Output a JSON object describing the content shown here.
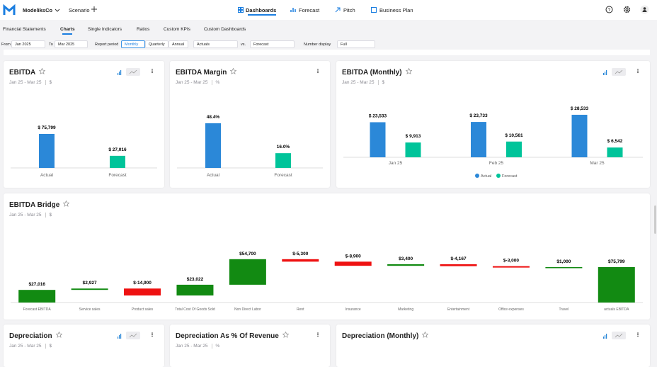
{
  "header": {
    "brand": "ModeliksCo",
    "scenario": "Scenario",
    "nav": [
      "Dashboards",
      "Forecast",
      "Pitch",
      "Business Plan"
    ]
  },
  "tabs": [
    "Financial Statements",
    "Charts",
    "Single Indicators",
    "Ratios",
    "Custom KPIs",
    "Custom Dashboards"
  ],
  "filters": {
    "from_label": "From",
    "from": "Jan 2025",
    "to_label": "To",
    "to": "Mar 2025",
    "period_label": "Report period",
    "periods": [
      "Monthly",
      "Quarterly",
      "Annual"
    ],
    "compare": "Actuals",
    "vs_label": "vs.",
    "compare_to": "Forecast",
    "number_display_label": "Number display",
    "number_display": "Full"
  },
  "chart_data": [
    {
      "type": "bar",
      "title": "EBITDA",
      "subtitle": "Jan 25 - Mar 25",
      "unit": "$",
      "categories": [
        "Actual",
        "Forecast"
      ],
      "values": [
        75799,
        27016
      ],
      "value_labels": [
        "$ 75,799",
        "$ 27,016"
      ],
      "colors": [
        "#2b88d8",
        "#00c49a"
      ]
    },
    {
      "type": "bar",
      "title": "EBITDA Margin",
      "subtitle": "Jan 25 - Mar 25",
      "unit": "%",
      "categories": [
        "Actual",
        "Forecast"
      ],
      "values": [
        48.4,
        16
      ],
      "value_labels": [
        "48.4%",
        "16.0%"
      ],
      "colors": [
        "#2b88d8",
        "#00c49a"
      ]
    },
    {
      "type": "bar",
      "title": "EBITDA (Monthly)",
      "subtitle": "Jan 25 - Mar 25",
      "unit": "$",
      "categories": [
        "Jan 25",
        "Feb 25",
        "Mar 25"
      ],
      "series": [
        {
          "name": "Actual",
          "color": "#2b88d8",
          "values": [
            23533,
            23733,
            28533
          ],
          "value_labels": [
            "$ 23,533",
            "$ 23,733",
            "$ 28,533"
          ]
        },
        {
          "name": "Forecast",
          "color": "#00c49a",
          "values": [
            9913,
            10561,
            6542
          ],
          "value_labels": [
            "$ 9,913",
            "$ 10,561",
            "$ 6,542"
          ]
        }
      ]
    },
    {
      "type": "waterfall",
      "title": "EBITDA Bridge",
      "subtitle": "Jan 25 - Mar 25",
      "unit": "$",
      "categories": [
        "Forecast EBITDA",
        "Service sales",
        "Product sales",
        "Total Cost Of Goods Sold",
        "Non Direct Labor",
        "Rent",
        "Insurance",
        "Marketing",
        "Entertainment",
        "Office expenses",
        "Travel",
        "actuals EBITDA"
      ],
      "values": [
        27016,
        2927,
        -14900,
        23022,
        54700,
        -5300,
        -8900,
        3400,
        -4167,
        -3000,
        1000,
        75799
      ],
      "value_labels": [
        "$27,016",
        "$2,927",
        "$-14,900",
        "$23,022",
        "$54,700",
        "$-5,300",
        "$-8,900",
        "$3,400",
        "$-4,167",
        "$-3,000",
        "$1,000",
        "$75,799"
      ],
      "increase_color": "#128a12",
      "decrease_color": "#ee1111"
    }
  ],
  "bottom_cards": [
    {
      "title": "Depreciation",
      "subtitle": "Jan 25 - Mar 25",
      "unit": "$"
    },
    {
      "title": "Depreciation As % Of Revenue",
      "subtitle": "Jan 25 - Mar 25",
      "unit": "%"
    },
    {
      "title": "Depreciation (Monthly)"
    }
  ]
}
